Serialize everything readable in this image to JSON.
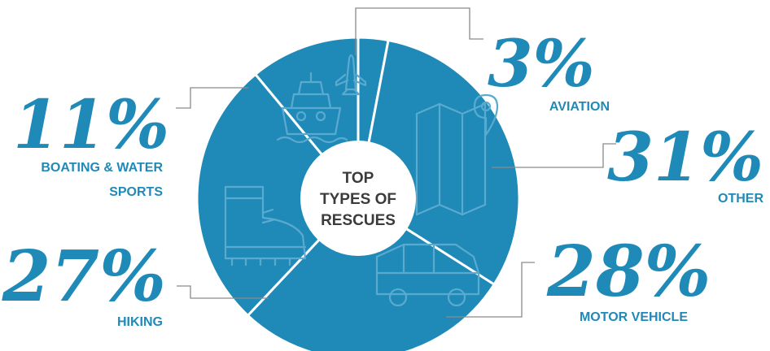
{
  "chart_data": {
    "type": "pie",
    "title": "TOP TYPES OF RESCUES",
    "title_lines": [
      "TOP",
      "TYPES OF",
      "RESCUES"
    ],
    "donut": true,
    "slices": [
      {
        "label": "AVIATION",
        "label_lines": [
          "AVIATION"
        ],
        "value": 3,
        "display": "3%",
        "icon": "airplane-icon"
      },
      {
        "label": "OTHER",
        "label_lines": [
          "OTHER"
        ],
        "value": 31,
        "display": "31%",
        "icon": "map-icon"
      },
      {
        "label": "MOTOR VEHICLE",
        "label_lines": [
          "MOTOR VEHICLE"
        ],
        "value": 28,
        "display": "28%",
        "icon": "car-icon"
      },
      {
        "label": "HIKING",
        "label_lines": [
          "HIKING"
        ],
        "value": 27,
        "display": "27%",
        "icon": "boot-icon"
      },
      {
        "label": "BOATING & WATER SPORTS",
        "label_lines": [
          "BOATING & WATER",
          "SPORTS"
        ],
        "value": 11,
        "display": "11%",
        "icon": "ship-icon"
      }
    ],
    "colors": {
      "slice": "#1f8ab8",
      "separator": "#ffffff",
      "text": "#1f8ab8",
      "center_text": "#3b3b3b",
      "leader": "#8a8a8a",
      "icon": "#5aaad0"
    }
  }
}
